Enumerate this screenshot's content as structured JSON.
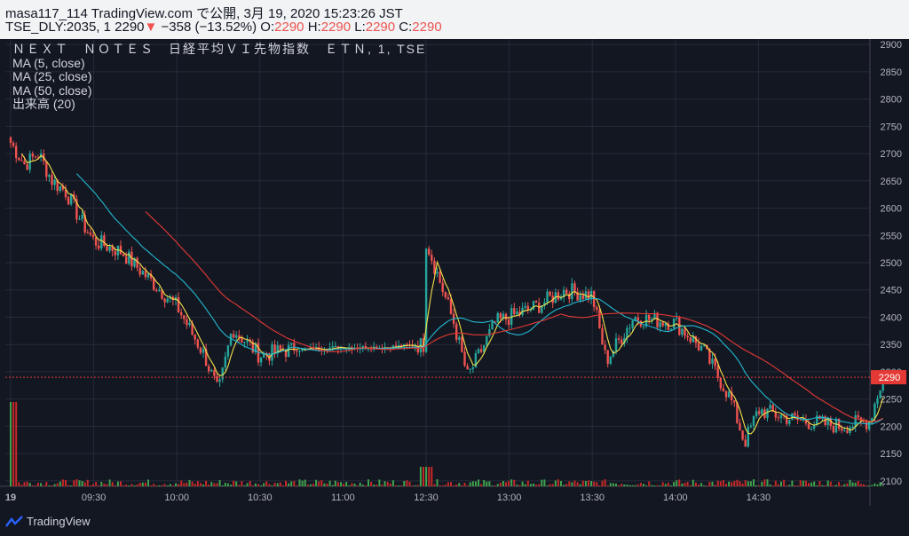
{
  "header": {
    "publish_line": "masa117_114 TradingView.com で公開, 3月 19, 2020 15:23:26 JST",
    "symbol_prefix": "TSE_DLY:2035, 1",
    "last_price": "2290",
    "change": "−358 (−13.52%)",
    "o_label": "O:",
    "o_val": "2290",
    "h_label": "H:",
    "h_val": "2290",
    "l_label": "L:",
    "l_val": "2290",
    "c_label": "C:",
    "c_val": "2290"
  },
  "legend": {
    "title": "ＮＥＸＴ　ＮＯＴＥＳ　日経平均ＶＩ先物指数　ＥＴＮ, 1, TSE",
    "ma5": "MA (5, close)",
    "ma25": "MA (25, close)",
    "ma50": "MA (50, close)",
    "volume": "出来高 (20)"
  },
  "footer": {
    "brand": "TradingView"
  },
  "colors": {
    "up": "#26a69a",
    "down": "#ef5350",
    "ma5": "#f5e04a",
    "ma25": "#22b8cf",
    "ma50": "#e53935",
    "vol_up": "#3fa34d",
    "vol_down": "#c62828"
  },
  "chart_data": {
    "type": "candlestick",
    "y_ticks": [
      2100,
      2150,
      2200,
      2250,
      2300,
      2350,
      2400,
      2450,
      2500,
      2550,
      2600,
      2650,
      2700,
      2750,
      2800,
      2850,
      2900
    ],
    "ylim": [
      2090,
      2910
    ],
    "x_ticks": [
      "19",
      "09:30",
      "10:00",
      "10:30",
      "11:00",
      "12:30",
      "13:00",
      "13:30",
      "14:00",
      "14:30"
    ],
    "last_price_label": "2290",
    "close_path": [
      {
        "time": "09:00",
        "close": 2720
      },
      {
        "time": "09:05",
        "close": 2680
      },
      {
        "time": "09:10",
        "close": 2700
      },
      {
        "time": "09:15",
        "close": 2650
      },
      {
        "time": "09:20",
        "close": 2630
      },
      {
        "time": "09:25",
        "close": 2580
      },
      {
        "time": "09:30",
        "close": 2540
      },
      {
        "time": "09:40",
        "close": 2520
      },
      {
        "time": "09:50",
        "close": 2470
      },
      {
        "time": "10:00",
        "close": 2420
      },
      {
        "time": "10:10",
        "close": 2330
      },
      {
        "time": "10:15",
        "close": 2260
      },
      {
        "time": "10:20",
        "close": 2380
      },
      {
        "time": "10:30",
        "close": 2330
      },
      {
        "time": "10:40",
        "close": 2340
      },
      {
        "time": "11:00",
        "close": 2345
      },
      {
        "time": "11:15",
        "close": 2345
      },
      {
        "time": "11:30",
        "close": 2350
      },
      {
        "time": "12:30",
        "close": 2540
      },
      {
        "time": "12:40",
        "close": 2390
      },
      {
        "time": "12:45",
        "close": 2290
      },
      {
        "time": "12:55",
        "close": 2390
      },
      {
        "time": "13:10",
        "close": 2420
      },
      {
        "time": "13:20",
        "close": 2450
      },
      {
        "time": "13:30",
        "close": 2440
      },
      {
        "time": "13:35",
        "close": 2320
      },
      {
        "time": "13:45",
        "close": 2400
      },
      {
        "time": "14:00",
        "close": 2390
      },
      {
        "time": "14:10",
        "close": 2340
      },
      {
        "time": "14:20",
        "close": 2250
      },
      {
        "time": "14:25",
        "close": 2170
      },
      {
        "time": "14:30",
        "close": 2230
      },
      {
        "time": "14:45",
        "close": 2210
      },
      {
        "time": "15:00",
        "close": 2200
      },
      {
        "time": "15:10",
        "close": 2210
      },
      {
        "time": "15:15",
        "close": 2290
      }
    ]
  }
}
